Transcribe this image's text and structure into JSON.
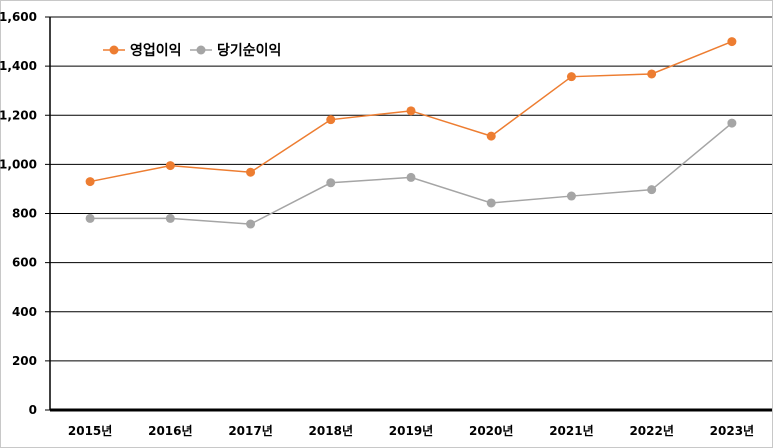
{
  "chart_data": {
    "type": "line",
    "title": "",
    "xlabel": "",
    "ylabel": "",
    "categories": [
      "2015년",
      "2016년",
      "2017년",
      "2018년",
      "2019년",
      "2020년",
      "2021년",
      "2022년",
      "2023년"
    ],
    "ylim": [
      0,
      1600
    ],
    "yticks": [
      0,
      200,
      400,
      600,
      800,
      1000,
      1200,
      1400,
      1600
    ],
    "ytick_labels": [
      "0",
      "200",
      "400",
      "600",
      "800",
      "1,000",
      "1,200",
      "1,400",
      "1,600"
    ],
    "grid": true,
    "legend_position": "top-left",
    "series": [
      {
        "name": "영업이익",
        "color": "#ED7D31",
        "values": [
          930,
          995,
          968,
          1182,
          1218,
          1115,
          1357,
          1368,
          1500
        ]
      },
      {
        "name": "당기순이익",
        "color": "#A5A5A5",
        "values": [
          780,
          780,
          757,
          925,
          947,
          843,
          871,
          897,
          1168
        ]
      }
    ]
  }
}
